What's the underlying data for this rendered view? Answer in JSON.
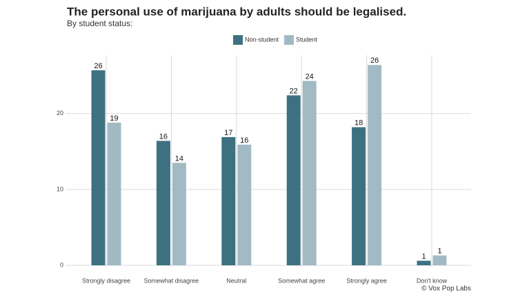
{
  "chart_data": {
    "type": "bar",
    "title": "The personal use of marijuana by adults should be legalised.",
    "subtitle": "By student status:",
    "caption": "© Vox Pop Labs",
    "categories": [
      "Strongly disagree",
      "Somewhat disagree",
      "Neutral",
      "Somewhat agree",
      "Strongly agree",
      "Don't know"
    ],
    "series": [
      {
        "name": "Non-student",
        "color": "#3d7181",
        "values": [
          25.7,
          16.4,
          16.9,
          22.4,
          18.2,
          0.6
        ],
        "value_labels": [
          "26",
          "16",
          "17",
          "22",
          "18",
          "1"
        ]
      },
      {
        "name": "Student",
        "color": "#a1bac4",
        "values": [
          18.8,
          13.5,
          15.9,
          24.3,
          26.4,
          1.3
        ],
        "value_labels": [
          "19",
          "14",
          "16",
          "24",
          "26",
          "1"
        ]
      }
    ],
    "ylim": [
      0,
      27.7
    ],
    "yticks": [
      0,
      10,
      20
    ],
    "grid": true,
    "legend": "top"
  }
}
